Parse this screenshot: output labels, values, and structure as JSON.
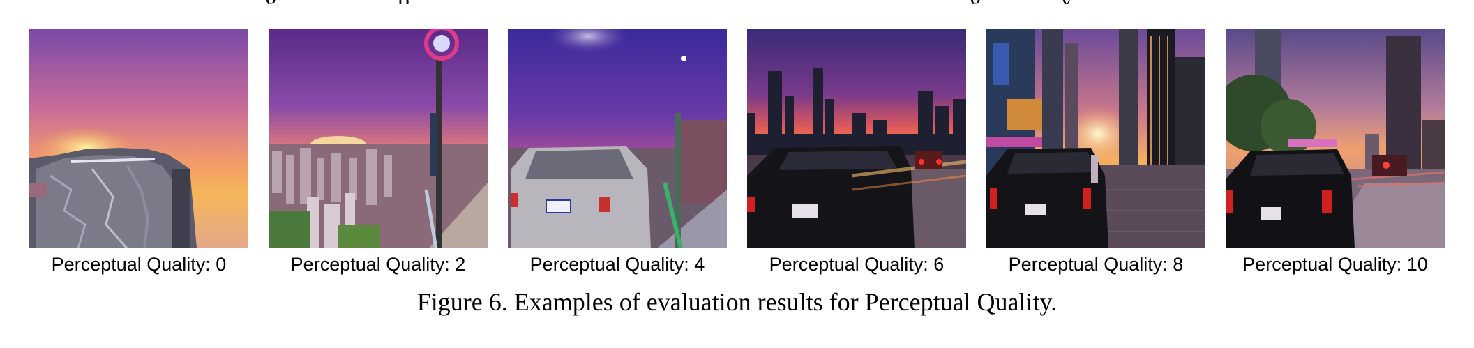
{
  "panels": [
    {
      "label": "Perceptual Quality: 0",
      "score": 0
    },
    {
      "label": "Perceptual Quality: 2",
      "score": 2
    },
    {
      "label": "Perceptual Quality: 4",
      "score": 4
    },
    {
      "label": "Perceptual Quality: 6",
      "score": 6
    },
    {
      "label": "Perceptual Quality: 8",
      "score": 8
    },
    {
      "label": "Perceptual Quality: 10",
      "score": 10
    }
  ],
  "caption": "Figure 6. Examples of evaluation results for Perceptual Quality."
}
